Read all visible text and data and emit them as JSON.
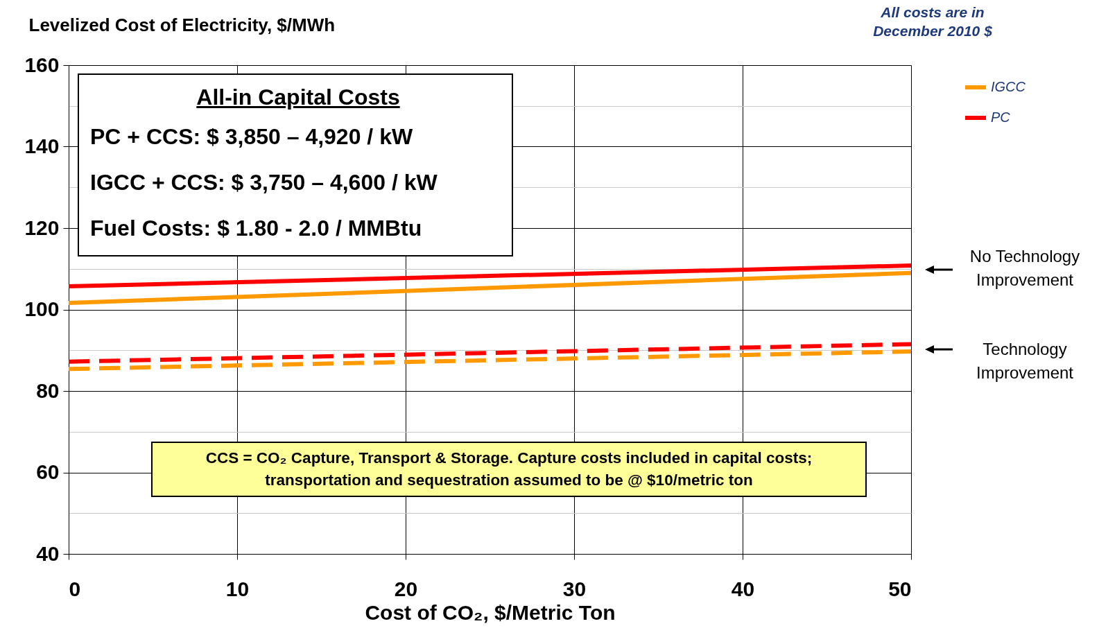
{
  "chart_data": {
    "type": "line",
    "xlabel": "Cost of CO₂, $/Metric Ton",
    "ylabel": "Levelized Cost of Electricity, $/MWh",
    "xlim": [
      0,
      50
    ],
    "xticks": [
      0,
      10,
      20,
      30,
      40,
      50
    ],
    "ylim": [
      40,
      160
    ],
    "yticks": [
      40,
      {
        "value": 50,
        "label": null
      },
      60,
      {
        "value": 70,
        "label": null
      },
      80,
      {
        "value": 90,
        "label": null
      },
      100,
      {
        "value": 110,
        "label": null
      },
      120,
      {
        "value": 130,
        "label": null
      },
      140,
      {
        "value": 150,
        "label": null
      },
      160
    ],
    "x": [
      0,
      50
    ],
    "grid": true,
    "legend": "top right",
    "marker": "none",
    "series": [
      {
        "name": "IGCC",
        "color": "#ff9900",
        "values": [
          101.6,
          109
        ],
        "line_style": "solid"
      },
      {
        "name": "PC",
        "color": "#ff0000",
        "values": [
          105.7,
          110.8
        ],
        "line_style": "solid"
      },
      {
        "color": "#ff9900",
        "values": [
          85.4,
          89.7
        ],
        "line_style": "dashed"
      },
      {
        "color": "#ff0000",
        "values": [
          87.2,
          91.5
        ],
        "line_style": "dashed"
      }
    ],
    "annotations": [
      "All costs are in December 2010 $",
      "All-in Capital Costs",
      "PC + CCS: $ 3,850 – 4,920 / kW",
      "IGCC + CCS: $ 3,750 – 4,600 / kW",
      "Fuel Costs: $ 1.80 - 2.0 / MMBtu",
      "CCS = CO₂ Capture, Transport & Storage. Capture costs included in capital costs; transportation and sequestration assumed to be @ $10/metric ton",
      "No Technology Improvement",
      "Technology Improvement"
    ]
  }
}
